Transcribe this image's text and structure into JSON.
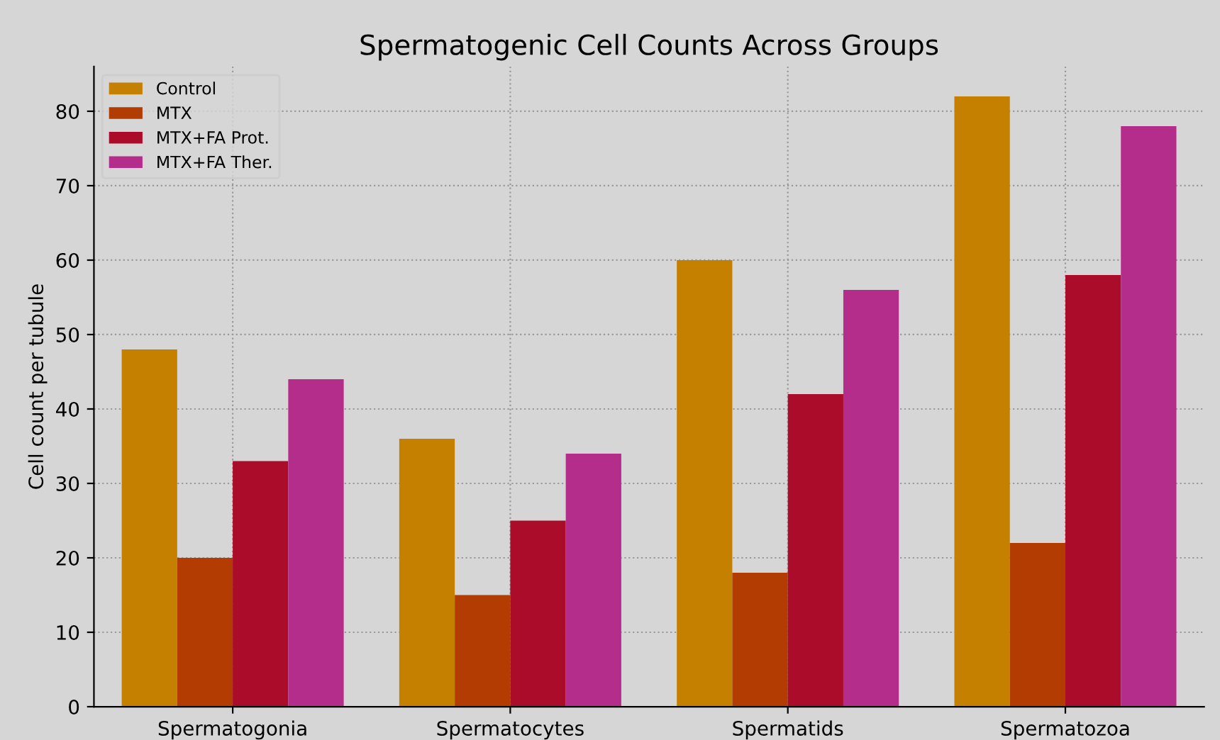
{
  "chart_data": {
    "type": "bar",
    "title": "Spermatogenic Cell Counts Across Groups",
    "ylabel": "Cell count per tubule",
    "categories": [
      "Spermatogonia",
      "Spermatocytes",
      "Spermatids",
      "Spermatozoa"
    ],
    "series": [
      {
        "name": "Control",
        "color": "#c58000",
        "values": [
          48,
          36,
          60,
          82
        ]
      },
      {
        "name": "MTX",
        "color": "#b23c02",
        "values": [
          20,
          15,
          18,
          22
        ]
      },
      {
        "name": "MTX+FA Prot.",
        "color": "#aa0c29",
        "values": [
          33,
          25,
          42,
          58
        ]
      },
      {
        "name": "MTX+FA Ther.",
        "color": "#b52d8a",
        "values": [
          44,
          34,
          56,
          78
        ]
      }
    ],
    "ylim": [
      0,
      86
    ],
    "yticks": [
      0,
      10,
      20,
      30,
      40,
      50,
      60,
      70,
      80
    ],
    "grid": true,
    "legend": "top left"
  }
}
